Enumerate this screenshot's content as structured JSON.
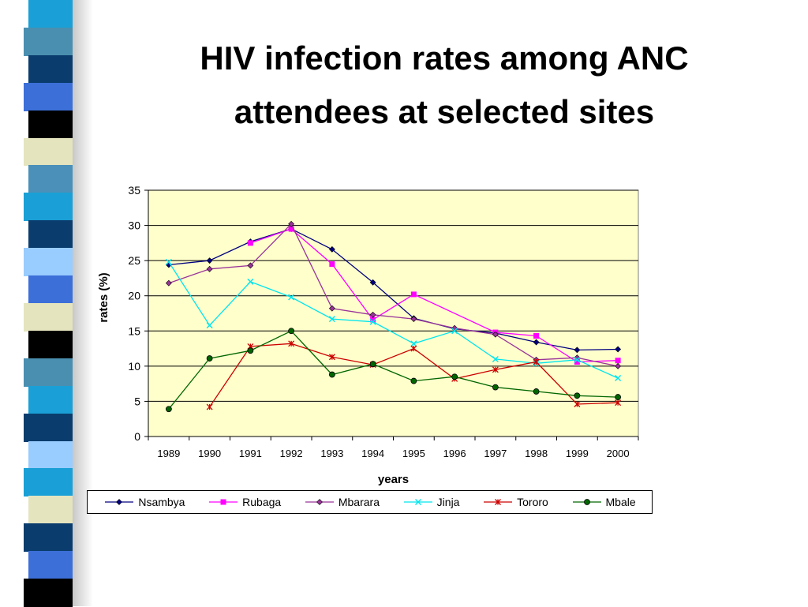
{
  "slide": {
    "title_line1": "HIV infection rates among ANC",
    "title_line2": "attendees at selected sites"
  },
  "decor": {
    "stripe_colors": [
      "#1aa0d6",
      "#4a8fb0",
      "#0a3d6e",
      "#3c6fd8",
      "#000000",
      "#e4e4bf",
      "#4a90b8",
      "#1aa0d6",
      "#0a3d6e",
      "#99ccff",
      "#3c6fd8",
      "#e4e4bf",
      "#000000",
      "#4a8fb0",
      "#1aa0d6",
      "#0a3d6e",
      "#99ccff",
      "#1aa0d6",
      "#e4e4bf",
      "#0a3d6e",
      "#3c6fd8",
      "#000000"
    ]
  },
  "chart_data": {
    "type": "line",
    "title": "",
    "xlabel": "years",
    "ylabel": "rates (%)",
    "ylim": [
      0,
      35
    ],
    "yticks": [
      "0",
      "5",
      "10",
      "15",
      "20",
      "25",
      "30",
      "35"
    ],
    "grid": true,
    "plot_background": "#ffffcc",
    "legend_position": "bottom",
    "categories": [
      "1989",
      "1990",
      "1991",
      "1992",
      "1993",
      "1994",
      "1995",
      "1996",
      "1997",
      "1998",
      "1999",
      "2000"
    ],
    "series": [
      {
        "name": "Nsambya",
        "color": "#000080",
        "marker": "diamond",
        "values": [
          24.4,
          25.0,
          27.7,
          29.5,
          26.6,
          21.9,
          16.8,
          15.3,
          14.7,
          13.4,
          12.3,
          12.4
        ]
      },
      {
        "name": "Rubaga",
        "color": "#ff00ff",
        "marker": "square",
        "values": [
          null,
          null,
          27.5,
          29.5,
          24.5,
          16.6,
          20.2,
          null,
          14.8,
          14.3,
          10.6,
          10.8
        ]
      },
      {
        "name": "Mbarara",
        "color": "#993399",
        "marker": "diamond",
        "values": [
          21.8,
          23.8,
          24.3,
          30.2,
          18.2,
          17.3,
          16.7,
          15.4,
          14.5,
          10.9,
          11.2,
          10.0
        ]
      },
      {
        "name": "Jinja",
        "color": "#00e5ee",
        "marker": "x",
        "values": [
          24.8,
          15.8,
          22.0,
          19.8,
          16.7,
          16.3,
          13.2,
          15.0,
          11.0,
          10.4,
          10.9,
          8.3
        ]
      },
      {
        "name": "Tororo",
        "color": "#cc0000",
        "marker": "star",
        "values": [
          null,
          4.2,
          12.8,
          13.2,
          11.3,
          10.2,
          12.5,
          8.2,
          9.5,
          10.6,
          4.6,
          4.8
        ]
      },
      {
        "name": "Mbale",
        "color": "#006600",
        "marker": "circle",
        "values": [
          3.9,
          11.1,
          12.2,
          15.0,
          8.8,
          10.3,
          7.9,
          8.5,
          7.0,
          6.4,
          5.8,
          5.6
        ]
      }
    ]
  }
}
